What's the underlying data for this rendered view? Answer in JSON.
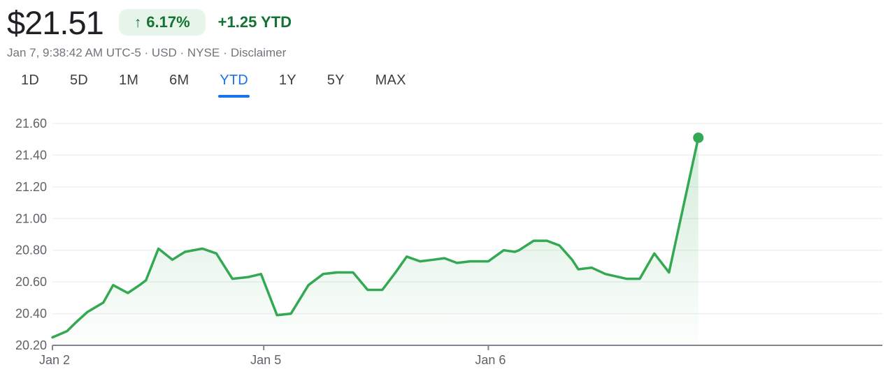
{
  "header": {
    "price": "$21.51",
    "change_badge": {
      "arrow": "↑",
      "percent": "6.17%"
    },
    "ytd_change": "+1.25 YTD",
    "timestamp": "Jan 7, 9:38:42 AM UTC-5 · USD · NYSE",
    "separator": "·",
    "disclaimer": "Disclaimer"
  },
  "tabs": [
    {
      "label": "1D",
      "active": false
    },
    {
      "label": "5D",
      "active": false
    },
    {
      "label": "1M",
      "active": false
    },
    {
      "label": "6M",
      "active": false
    },
    {
      "label": "YTD",
      "active": true
    },
    {
      "label": "1Y",
      "active": false
    },
    {
      "label": "5Y",
      "active": false
    },
    {
      "label": "MAX",
      "active": false
    }
  ],
  "colors": {
    "text_primary": "#202124",
    "text_secondary": "#70757a",
    "positive_dark": "#137333",
    "badge_bg": "#e6f4ea",
    "line_green": "#34a853",
    "active_tab_blue": "#1a73e8",
    "grid_gray": "#eef0f2",
    "axis_gray": "#80868b",
    "tick_label_gray": "#5f6368"
  },
  "chart_data": {
    "type": "area",
    "title": "YTD price chart",
    "ylim": [
      20.2,
      21.6
    ],
    "y_ticks": [
      21.6,
      21.4,
      21.2,
      21.0,
      20.8,
      20.6,
      20.4,
      20.2
    ],
    "x_ticks": [
      {
        "label": "Jan 2",
        "pos": 0.0
      },
      {
        "label": "Jan 5",
        "pos": 0.2546
      },
      {
        "label": "Jan 6",
        "pos": 0.5252
      }
    ],
    "grid": true,
    "legend": "none",
    "marker_on_last_point": true,
    "last_price": 21.51,
    "points": [
      [
        0.0,
        20.25
      ],
      [
        0.0176,
        20.29
      ],
      [
        0.0294,
        20.35
      ],
      [
        0.042,
        20.41
      ],
      [
        0.0613,
        20.47
      ],
      [
        0.0731,
        20.58
      ],
      [
        0.0908,
        20.53
      ],
      [
        0.105,
        20.58
      ],
      [
        0.1126,
        20.61
      ],
      [
        0.1277,
        20.81
      ],
      [
        0.1445,
        20.74
      ],
      [
        0.1597,
        20.79
      ],
      [
        0.1807,
        20.81
      ],
      [
        0.1975,
        20.78
      ],
      [
        0.2168,
        20.62
      ],
      [
        0.2353,
        20.63
      ],
      [
        0.2513,
        20.65
      ],
      [
        0.2706,
        20.39
      ],
      [
        0.2874,
        20.4
      ],
      [
        0.3084,
        20.58
      ],
      [
        0.3261,
        20.65
      ],
      [
        0.3429,
        20.66
      ],
      [
        0.3622,
        20.66
      ],
      [
        0.3798,
        20.55
      ],
      [
        0.3975,
        20.55
      ],
      [
        0.4134,
        20.66
      ],
      [
        0.4269,
        20.76
      ],
      [
        0.4429,
        20.73
      ],
      [
        0.4588,
        20.74
      ],
      [
        0.4723,
        20.75
      ],
      [
        0.4874,
        20.72
      ],
      [
        0.5034,
        20.73
      ],
      [
        0.5252,
        20.73
      ],
      [
        0.5437,
        20.8
      ],
      [
        0.5571,
        20.79
      ],
      [
        0.5622,
        20.8
      ],
      [
        0.5798,
        20.86
      ],
      [
        0.5958,
        20.86
      ],
      [
        0.6109,
        20.83
      ],
      [
        0.6261,
        20.74
      ],
      [
        0.6336,
        20.68
      ],
      [
        0.6496,
        20.69
      ],
      [
        0.6664,
        20.65
      ],
      [
        0.6832,
        20.63
      ],
      [
        0.6916,
        20.62
      ],
      [
        0.7076,
        20.62
      ],
      [
        0.7252,
        20.78
      ],
      [
        0.7429,
        20.66
      ],
      [
        0.7782,
        21.51
      ]
    ]
  }
}
